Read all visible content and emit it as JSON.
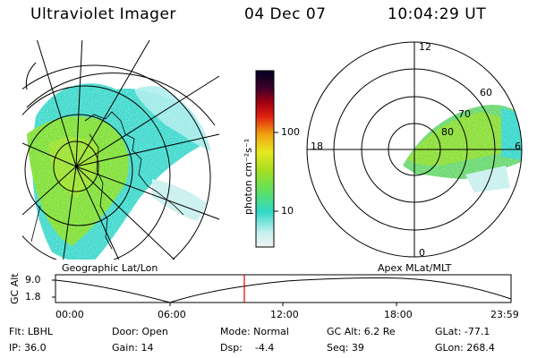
{
  "header": {
    "instrument": "Ultraviolet Imager",
    "date": "04 Dec 07",
    "time": "10:04:29 UT"
  },
  "left_panel": {
    "label": "Geographic Lat/Lon"
  },
  "right_panel": {
    "label": "Apex MLat/MLT",
    "mlt_labels": {
      "top": "12",
      "left": "18",
      "right": "6",
      "bottom": "0"
    },
    "mlat_labels": [
      "60",
      "70",
      "80"
    ]
  },
  "colorbar": {
    "unit_label": "photon cm⁻²s⁻¹",
    "ticks": [
      "100",
      "10"
    ],
    "scale": "log"
  },
  "altitude_plot": {
    "ylabel": "GC Alt",
    "yticks": [
      "9.0",
      "1.8"
    ],
    "xticks": [
      "00:00",
      "06:00",
      "12:00",
      "18:00",
      "23:59"
    ],
    "current_time_marker": "10:04",
    "marker_color": "#e00000"
  },
  "status": {
    "flt": "Flt: LBHL",
    "ip": "IP: 36.0",
    "door": "Door: Open",
    "gain": "Gain: 14",
    "mode": "Mode: Normal",
    "dsp": "Dsp:    -4.4",
    "gc_alt": "GC Alt: 6.2 Re",
    "seq": "Seq: 39",
    "glat": "GLat: -77.1",
    "glon": "GLon: 268.4"
  }
}
